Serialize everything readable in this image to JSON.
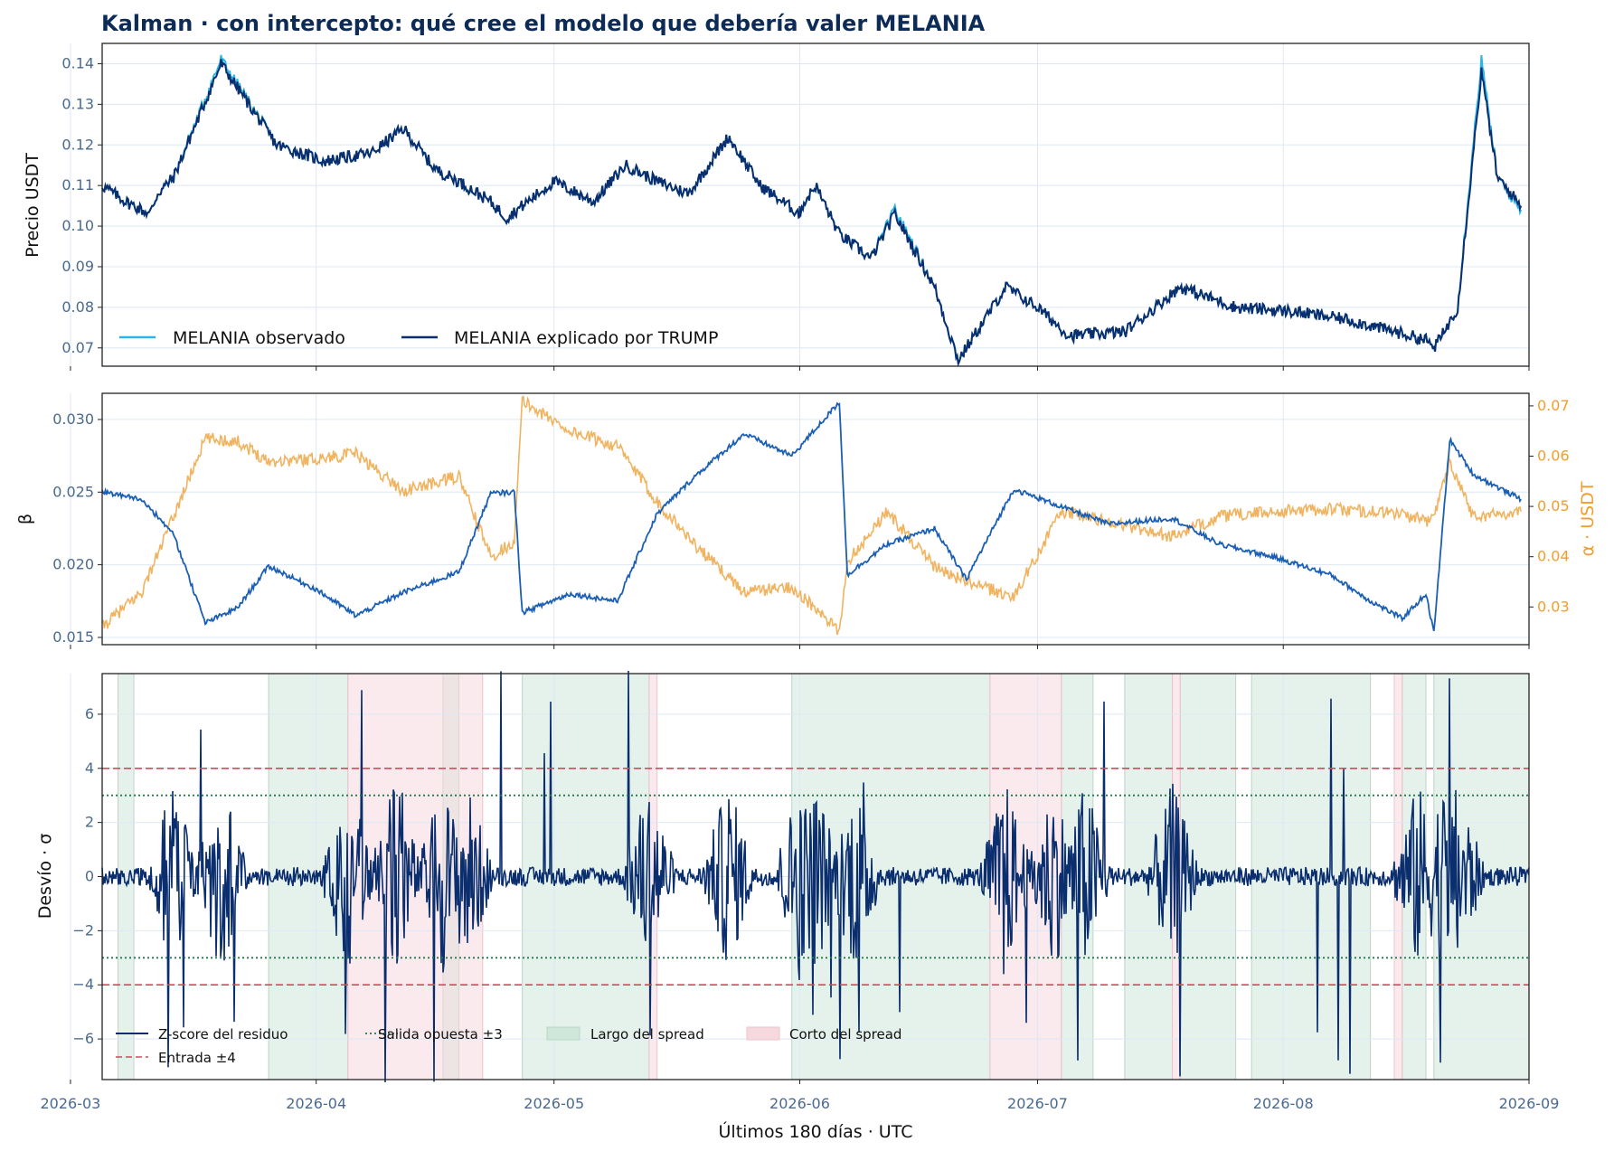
{
  "title": "Kalman · con intercepto: qué cree el modelo que debería valer MELANIA",
  "xlabel": "Últimos 180 días · UTC",
  "x_ticks": [
    "2026-03",
    "2026-04",
    "2026-05",
    "2026-06",
    "2026-07",
    "2026-08",
    "2026-09"
  ],
  "colors": {
    "observed": "#29b6e8",
    "explained": "#0a2e6e",
    "beta": "#1a5fb4",
    "alpha": "#f0b35f",
    "zscore": "#0a2e6e",
    "entry": "#d9475a",
    "exit": "#1e7a4a",
    "long": "#cfe6da",
    "short": "#f6d9df"
  },
  "chart_data": [
    {
      "type": "line",
      "x_range": [
        "2026-03-05",
        "2026-09-01"
      ],
      "ylabel": "Precio USDT",
      "ylim": [
        0.0655,
        0.145
      ],
      "y_ticks": [
        "0.07",
        "0.08",
        "0.09",
        "0.10",
        "0.11",
        "0.12",
        "0.13",
        "0.14"
      ],
      "x": [
        "2026-03-05",
        "2026-03-08",
        "2026-03-11",
        "2026-03-12",
        "2026-03-14",
        "2026-03-20",
        "2026-03-27",
        "2026-04-02",
        "2026-04-08",
        "2026-04-12",
        "2026-04-16",
        "2026-04-19",
        "2026-04-23",
        "2026-04-25",
        "2026-05-01",
        "2026-05-06",
        "2026-05-10",
        "2026-05-14",
        "2026-05-18",
        "2026-05-23",
        "2026-05-27",
        "2026-06-01",
        "2026-06-01",
        "2026-06-03",
        "2026-06-06",
        "2026-06-10",
        "2026-06-13",
        "2026-06-18",
        "2026-06-21",
        "2026-06-27",
        "2026-07-01",
        "2026-07-05",
        "2026-07-12",
        "2026-07-19",
        "2026-07-26",
        "2026-08-02",
        "2026-08-09",
        "2026-08-15",
        "2026-08-19",
        "2026-08-20",
        "2026-08-21",
        "2026-08-23",
        "2026-08-26",
        "2026-08-28",
        "2026-08-31"
      ],
      "series": [
        {
          "name": "MELANIA observado",
          "values": [
            0.11,
            0.106,
            0.103,
            0.108,
            0.112,
            0.141,
            0.12,
            0.116,
            0.118,
            0.124,
            0.114,
            0.111,
            0.106,
            0.102,
            0.111,
            0.106,
            0.115,
            0.111,
            0.108,
            0.122,
            0.11,
            0.103,
            0.104,
            0.11,
            0.098,
            0.092,
            0.104,
            0.085,
            0.067,
            0.085,
            0.08,
            0.073,
            0.074,
            0.085,
            0.08,
            0.079,
            0.077,
            0.074,
            0.072,
            0.07,
            0.073,
            0.08,
            0.141,
            0.112,
            0.104
          ]
        },
        {
          "name": "MELANIA explicado por TRUMP",
          "values": [
            0.11,
            0.106,
            0.103,
            0.108,
            0.112,
            0.14,
            0.12,
            0.116,
            0.118,
            0.124,
            0.114,
            0.111,
            0.106,
            0.102,
            0.111,
            0.106,
            0.115,
            0.111,
            0.108,
            0.122,
            0.11,
            0.103,
            0.104,
            0.11,
            0.098,
            0.092,
            0.103,
            0.085,
            0.067,
            0.085,
            0.08,
            0.073,
            0.074,
            0.085,
            0.08,
            0.079,
            0.077,
            0.074,
            0.072,
            0.07,
            0.073,
            0.08,
            0.138,
            0.112,
            0.105
          ]
        }
      ]
    },
    {
      "type": "line",
      "x_range": [
        "2026-03-05",
        "2026-09-01"
      ],
      "ylabel": "β",
      "ylim": [
        0.0145,
        0.0318
      ],
      "y_ticks": [
        "0.015",
        "0.020",
        "0.025",
        "0.030"
      ],
      "y2label": "α · USDT",
      "y2lim": [
        0.0225,
        0.0725
      ],
      "y2_ticks": [
        "0.03",
        "0.04",
        "0.05",
        "0.06",
        "0.07"
      ],
      "x": [
        "2026-03-05",
        "2026-03-10",
        "2026-03-14",
        "2026-03-18",
        "2026-03-22",
        "2026-03-26",
        "2026-04-01",
        "2026-04-06",
        "2026-04-12",
        "2026-04-19",
        "2026-04-23",
        "2026-04-26",
        "2026-04-27",
        "2026-05-03",
        "2026-05-09",
        "2026-05-14",
        "2026-05-19",
        "2026-05-25",
        "2026-05-31",
        "2026-06-06",
        "2026-06-07",
        "2026-06-12",
        "2026-06-18",
        "2026-06-22",
        "2026-06-28",
        "2026-07-04",
        "2026-07-10",
        "2026-07-18",
        "2026-07-24",
        "2026-07-31",
        "2026-08-07",
        "2026-08-12",
        "2026-08-16",
        "2026-08-19",
        "2026-08-20",
        "2026-08-22",
        "2026-08-25",
        "2026-08-31"
      ],
      "series": [
        {
          "name": "β",
          "axis": "left",
          "values": [
            0.025,
            0.0245,
            0.0221,
            0.016,
            0.017,
            0.0199,
            0.0183,
            0.0165,
            0.0181,
            0.0195,
            0.0249,
            0.025,
            0.0167,
            0.018,
            0.0175,
            0.0235,
            0.0262,
            0.029,
            0.0275,
            0.0312,
            0.0193,
            0.0214,
            0.0225,
            0.019,
            0.0252,
            0.024,
            0.0228,
            0.0232,
            0.0214,
            0.0205,
            0.0193,
            0.0175,
            0.0163,
            0.018,
            0.0153,
            0.0286,
            0.0262,
            0.0245
          ]
        },
        {
          "name": "α · USDT",
          "axis": "right",
          "values": [
            0.026,
            0.033,
            0.048,
            0.0635,
            0.063,
            0.059,
            0.0595,
            0.0605,
            0.053,
            0.056,
            0.04,
            0.043,
            0.071,
            0.065,
            0.062,
            0.051,
            0.042,
            0.033,
            0.034,
            0.025,
            0.039,
            0.049,
            0.038,
            0.035,
            0.032,
            0.049,
            0.047,
            0.044,
            0.048,
            0.049,
            0.0495,
            0.049,
            0.0485,
            0.047,
            0.048,
            0.059,
            0.048,
            0.049
          ]
        }
      ]
    },
    {
      "type": "line",
      "x_range": [
        "2026-03-05",
        "2026-09-01"
      ],
      "ylabel": "Desvío · σ",
      "ylim": [
        -7.5,
        7.5
      ],
      "y_ticks": [
        "6",
        "4",
        "2",
        "0",
        "−2",
        "−4",
        "−6"
      ],
      "series": [
        {
          "name": "Z-score del residuo",
          "values": "residual z-score oscillating around 0 with spikes beyond ±7"
        }
      ],
      "reference_lines": [
        {
          "name": "Entrada ±4",
          "values": [
            4,
            -4
          ],
          "style": "dashed"
        },
        {
          "name": "Salida opuesta ±3",
          "values": [
            3,
            -3
          ],
          "style": "dotted"
        }
      ],
      "regions": [
        {
          "name": "Largo del spread",
          "spans": [
            [
              "2026-03-07",
              "2026-03-09"
            ],
            [
              "2026-03-26",
              "2026-04-05"
            ],
            [
              "2026-04-17",
              "2026-04-19"
            ],
            [
              "2026-04-27",
              "2026-05-13"
            ],
            [
              "2026-05-31",
              "2026-06-25"
            ],
            [
              "2026-07-04",
              "2026-07-08"
            ],
            [
              "2026-07-12",
              "2026-07-18"
            ],
            [
              "2026-07-19",
              "2026-07-26"
            ],
            [
              "2026-07-28",
              "2026-08-12"
            ],
            [
              "2026-08-16",
              "2026-08-19"
            ],
            [
              "2026-08-20",
              "2026-09-01"
            ]
          ]
        },
        {
          "name": "Corto del spread",
          "spans": [
            [
              "2026-04-05",
              "2026-04-22"
            ],
            [
              "2026-05-13",
              "2026-05-14"
            ],
            [
              "2026-06-25",
              "2026-07-04"
            ],
            [
              "2026-07-18",
              "2026-07-19"
            ],
            [
              "2026-08-15",
              "2026-08-16"
            ]
          ]
        }
      ]
    }
  ],
  "legend_top": [
    "MELANIA observado",
    "MELANIA explicado por TRUMP"
  ],
  "legend_bottom": [
    "Z-score del residuo",
    "Entrada ±4",
    "Salida opuesta ±3",
    "Largo del spread",
    "Corto del spread"
  ]
}
